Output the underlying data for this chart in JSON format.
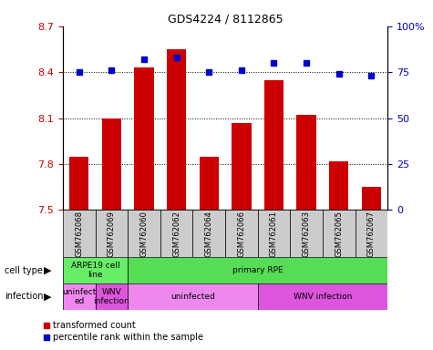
{
  "title": "GDS4224 / 8112865",
  "samples": [
    "GSM762068",
    "GSM762069",
    "GSM762060",
    "GSM762062",
    "GSM762064",
    "GSM762066",
    "GSM762061",
    "GSM762063",
    "GSM762065",
    "GSM762067"
  ],
  "transformed_count": [
    7.85,
    8.1,
    8.43,
    8.55,
    7.85,
    8.07,
    8.35,
    8.12,
    7.82,
    7.65
  ],
  "percentile_rank": [
    75,
    76,
    82,
    83,
    75,
    76,
    80,
    80,
    74,
    73
  ],
  "ylim_left": [
    7.5,
    8.7
  ],
  "ylim_right": [
    0,
    100
  ],
  "yticks_left": [
    7.5,
    7.8,
    8.1,
    8.4,
    8.7
  ],
  "yticks_right": [
    0,
    25,
    50,
    75,
    100
  ],
  "bar_color": "#cc0000",
  "dot_color": "#0000cc",
  "bar_bottom": 7.5,
  "cell_type_groups": [
    {
      "label": "ARPE19 cell\nline",
      "start": 0,
      "end": 2,
      "color": "#66ee66"
    },
    {
      "label": "primary RPE",
      "start": 2,
      "end": 10,
      "color": "#55dd55"
    }
  ],
  "infection_groups": [
    {
      "label": "uninfect\ned",
      "start": 0,
      "end": 1,
      "color": "#ee88ee"
    },
    {
      "label": "WNV\ninfection",
      "start": 1,
      "end": 2,
      "color": "#dd55dd"
    },
    {
      "label": "uninfected",
      "start": 2,
      "end": 6,
      "color": "#ee88ee"
    },
    {
      "label": "WNV infection",
      "start": 6,
      "end": 10,
      "color": "#dd55dd"
    }
  ],
  "background_color": "#ffffff",
  "tick_label_color_left": "#cc0000",
  "tick_label_color_right": "#0000cc",
  "sample_bg_color": "#cccccc",
  "legend_bar_label": "transformed count",
  "legend_dot_label": "percentile rank within the sample",
  "cell_type_label": "cell type",
  "infection_label": "infection"
}
